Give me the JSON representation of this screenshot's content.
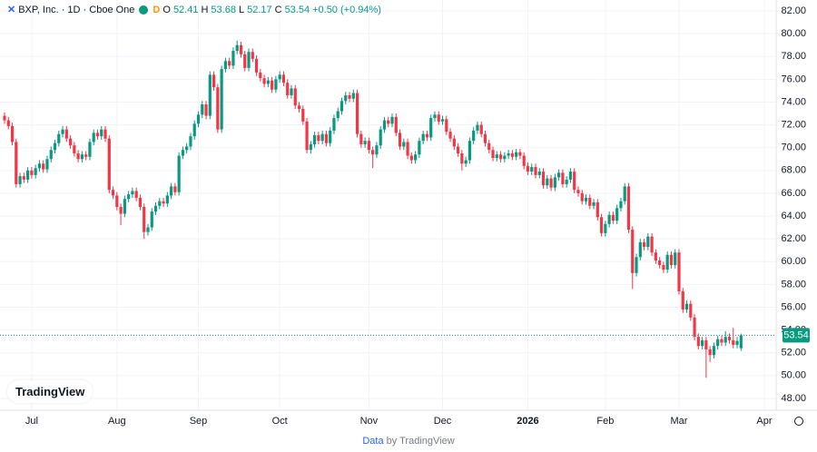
{
  "chart_data": {
    "type": "candlestick",
    "symbol": "BXP, Inc. · 1D · Cboe One",
    "badge": "D",
    "ohlc_labels": [
      "O",
      "H",
      "L",
      "C"
    ],
    "change": "+0.50 (+0.94%)",
    "up_color": "#089981",
    "down_color": "#f23645",
    "grid": true,
    "ohlc": [
      [
        72.8,
        73.1,
        72.1,
        72.4
      ],
      [
        72.4,
        72.7,
        71.6,
        71.9
      ],
      [
        71.9,
        72.2,
        70.2,
        70.5
      ],
      [
        70.5,
        70.8,
        66.5,
        66.8
      ],
      [
        66.8,
        67.8,
        66.5,
        67.5
      ],
      [
        67.5,
        67.8,
        66.9,
        67.2
      ],
      [
        67.2,
        68.3,
        66.9,
        68.0
      ],
      [
        68.0,
        68.3,
        67.3,
        67.6
      ],
      [
        67.6,
        68.5,
        67.3,
        68.2
      ],
      [
        68.2,
        68.9,
        67.9,
        68.6
      ],
      [
        68.6,
        68.9,
        67.8,
        68.1
      ],
      [
        68.1,
        69.3,
        67.8,
        69.0
      ],
      [
        69.0,
        70.1,
        68.7,
        69.8
      ],
      [
        69.8,
        70.7,
        69.5,
        70.4
      ],
      [
        70.4,
        71.5,
        70.1,
        71.2
      ],
      [
        71.2,
        71.9,
        70.9,
        71.6
      ],
      [
        71.6,
        71.9,
        70.5,
        70.8
      ],
      [
        70.8,
        71.1,
        69.9,
        70.2
      ],
      [
        70.2,
        70.5,
        69.2,
        69.5
      ],
      [
        69.5,
        69.8,
        68.7,
        69.0
      ],
      [
        69.0,
        69.7,
        68.7,
        69.4
      ],
      [
        69.4,
        69.7,
        68.9,
        69.2
      ],
      [
        69.2,
        70.8,
        68.9,
        70.5
      ],
      [
        70.5,
        71.6,
        70.2,
        71.3
      ],
      [
        71.3,
        71.6,
        70.7,
        71.0
      ],
      [
        71.0,
        71.9,
        70.7,
        71.6
      ],
      [
        71.6,
        71.9,
        70.5,
        70.8
      ],
      [
        70.8,
        71.1,
        66.0,
        66.3
      ],
      [
        66.3,
        66.6,
        65.5,
        65.8
      ],
      [
        65.8,
        66.1,
        64.5,
        64.8
      ],
      [
        64.8,
        65.1,
        63.2,
        64.2
      ],
      [
        64.2,
        65.8,
        63.9,
        65.5
      ],
      [
        65.5,
        66.2,
        65.2,
        65.9
      ],
      [
        65.9,
        66.5,
        65.6,
        66.2
      ],
      [
        66.2,
        66.5,
        65.3,
        65.6
      ],
      [
        65.6,
        65.9,
        64.5,
        64.8
      ],
      [
        64.8,
        65.1,
        62.0,
        62.6
      ],
      [
        62.6,
        63.3,
        62.3,
        63.0
      ],
      [
        63.0,
        64.7,
        62.7,
        64.4
      ],
      [
        64.4,
        65.2,
        64.1,
        64.9
      ],
      [
        64.9,
        65.6,
        64.6,
        65.3
      ],
      [
        65.3,
        65.6,
        64.8,
        65.1
      ],
      [
        65.1,
        66.1,
        64.8,
        65.8
      ],
      [
        65.8,
        66.9,
        65.5,
        66.6
      ],
      [
        66.6,
        66.9,
        65.8,
        66.1
      ],
      [
        66.1,
        69.6,
        65.8,
        69.3
      ],
      [
        69.3,
        70.1,
        69.0,
        69.8
      ],
      [
        69.8,
        70.4,
        69.5,
        70.1
      ],
      [
        70.1,
        71.3,
        69.8,
        71.0
      ],
      [
        71.0,
        72.4,
        70.7,
        72.1
      ],
      [
        72.1,
        73.2,
        71.8,
        72.9
      ],
      [
        72.9,
        74.1,
        72.6,
        73.8
      ],
      [
        73.8,
        74.1,
        72.5,
        72.8
      ],
      [
        72.8,
        76.7,
        72.5,
        76.4
      ],
      [
        76.4,
        76.7,
        75.0,
        75.3
      ],
      [
        75.3,
        75.6,
        71.3,
        71.6
      ],
      [
        71.6,
        77.2,
        71.3,
        76.9
      ],
      [
        76.9,
        77.9,
        76.6,
        77.6
      ],
      [
        77.6,
        77.9,
        76.9,
        77.2
      ],
      [
        77.2,
        78.8,
        76.9,
        78.5
      ],
      [
        78.5,
        79.4,
        78.2,
        79.0
      ],
      [
        79.0,
        79.3,
        77.9,
        78.2
      ],
      [
        78.2,
        78.5,
        76.7,
        77.0
      ],
      [
        77.0,
        78.7,
        76.7,
        78.4
      ],
      [
        78.4,
        78.7,
        77.5,
        77.8
      ],
      [
        77.8,
        78.1,
        76.3,
        76.6
      ],
      [
        76.6,
        76.9,
        75.8,
        76.1
      ],
      [
        76.1,
        76.4,
        75.3,
        75.6
      ],
      [
        75.6,
        76.2,
        75.3,
        75.9
      ],
      [
        75.9,
        76.2,
        74.8,
        75.1
      ],
      [
        75.1,
        76.3,
        74.8,
        76.0
      ],
      [
        76.0,
        76.7,
        75.7,
        76.4
      ],
      [
        76.4,
        76.7,
        75.4,
        75.7
      ],
      [
        75.7,
        76.0,
        74.3,
        74.6
      ],
      [
        74.6,
        75.5,
        74.3,
        75.2
      ],
      [
        75.2,
        75.5,
        73.4,
        73.7
      ],
      [
        73.7,
        74.0,
        73.1,
        73.4
      ],
      [
        73.4,
        73.7,
        72.0,
        72.3
      ],
      [
        72.3,
        72.6,
        69.5,
        69.8
      ],
      [
        69.8,
        70.6,
        69.5,
        70.3
      ],
      [
        70.3,
        71.4,
        70.0,
        71.1
      ],
      [
        71.1,
        71.4,
        70.3,
        70.6
      ],
      [
        70.6,
        71.5,
        70.3,
        71.2
      ],
      [
        71.2,
        71.5,
        70.1,
        70.4
      ],
      [
        70.4,
        71.8,
        70.1,
        71.5
      ],
      [
        71.5,
        72.9,
        71.2,
        72.6
      ],
      [
        72.6,
        73.5,
        72.3,
        73.2
      ],
      [
        73.2,
        74.4,
        72.9,
        74.1
      ],
      [
        74.1,
        74.9,
        73.8,
        74.6
      ],
      [
        74.6,
        74.9,
        74.0,
        74.3
      ],
      [
        74.3,
        75.1,
        74.0,
        74.8
      ],
      [
        74.8,
        75.1,
        70.9,
        71.2
      ],
      [
        71.2,
        71.5,
        70.0,
        70.3
      ],
      [
        70.3,
        70.9,
        70.0,
        70.6
      ],
      [
        70.6,
        70.9,
        69.5,
        69.8
      ],
      [
        69.8,
        70.1,
        68.2,
        69.4
      ],
      [
        69.4,
        70.5,
        69.1,
        70.2
      ],
      [
        70.2,
        71.9,
        69.9,
        71.6
      ],
      [
        71.6,
        72.7,
        71.3,
        72.4
      ],
      [
        72.4,
        72.7,
        71.8,
        72.1
      ],
      [
        72.1,
        73.0,
        71.8,
        72.7
      ],
      [
        72.7,
        73.0,
        71.0,
        71.3
      ],
      [
        71.3,
        71.6,
        69.8,
        70.1
      ],
      [
        70.1,
        70.8,
        69.8,
        70.5
      ],
      [
        70.5,
        70.8,
        69.0,
        69.3
      ],
      [
        69.3,
        69.6,
        68.6,
        68.9
      ],
      [
        68.9,
        69.7,
        68.6,
        69.4
      ],
      [
        69.4,
        70.9,
        69.1,
        70.6
      ],
      [
        70.6,
        71.5,
        70.3,
        71.2
      ],
      [
        71.2,
        71.5,
        70.6,
        70.9
      ],
      [
        70.9,
        72.9,
        70.6,
        72.6
      ],
      [
        72.6,
        73.2,
        72.3,
        72.9
      ],
      [
        72.9,
        73.2,
        72.0,
        72.3
      ],
      [
        72.3,
        72.8,
        72.0,
        72.5
      ],
      [
        72.5,
        72.8,
        71.1,
        71.4
      ],
      [
        71.4,
        71.7,
        70.5,
        70.8
      ],
      [
        70.8,
        71.1,
        69.8,
        70.1
      ],
      [
        70.1,
        70.4,
        69.2,
        69.5
      ],
      [
        69.5,
        69.8,
        68.0,
        68.6
      ],
      [
        68.6,
        69.2,
        68.3,
        68.9
      ],
      [
        68.9,
        70.9,
        68.6,
        70.6
      ],
      [
        70.6,
        71.8,
        70.3,
        71.5
      ],
      [
        71.5,
        72.3,
        71.2,
        72.0
      ],
      [
        72.0,
        72.3,
        70.9,
        71.2
      ],
      [
        71.2,
        71.5,
        70.1,
        70.4
      ],
      [
        70.4,
        70.7,
        69.5,
        69.8
      ],
      [
        69.8,
        70.1,
        68.8,
        69.1
      ],
      [
        69.1,
        69.7,
        68.8,
        69.4
      ],
      [
        69.4,
        69.7,
        68.7,
        69.0
      ],
      [
        69.0,
        69.6,
        68.7,
        69.3
      ],
      [
        69.3,
        69.8,
        69.0,
        69.5
      ],
      [
        69.5,
        69.8,
        68.9,
        69.2
      ],
      [
        69.2,
        69.9,
        68.9,
        69.6
      ],
      [
        69.6,
        69.9,
        69.0,
        69.3
      ],
      [
        69.3,
        69.6,
        68.1,
        68.4
      ],
      [
        68.4,
        68.7,
        67.6,
        67.9
      ],
      [
        67.9,
        68.6,
        67.6,
        68.3
      ],
      [
        68.3,
        68.6,
        67.3,
        67.6
      ],
      [
        67.6,
        68.2,
        67.3,
        67.9
      ],
      [
        67.9,
        68.2,
        66.4,
        66.7
      ],
      [
        66.7,
        67.6,
        66.4,
        67.3
      ],
      [
        67.3,
        67.6,
        66.2,
        66.5
      ],
      [
        66.5,
        67.7,
        66.2,
        67.4
      ],
      [
        67.4,
        68.1,
        67.1,
        67.8
      ],
      [
        67.8,
        68.1,
        66.5,
        66.8
      ],
      [
        66.8,
        67.5,
        66.5,
        67.2
      ],
      [
        67.2,
        68.2,
        66.9,
        67.9
      ],
      [
        67.9,
        68.2,
        66.0,
        66.3
      ],
      [
        66.3,
        66.6,
        65.7,
        66.0
      ],
      [
        66.0,
        66.3,
        65.0,
        65.3
      ],
      [
        65.3,
        65.9,
        65.0,
        65.6
      ],
      [
        65.6,
        65.9,
        64.6,
        64.9
      ],
      [
        64.9,
        65.5,
        64.6,
        65.2
      ],
      [
        65.2,
        65.5,
        63.6,
        63.9
      ],
      [
        63.9,
        64.2,
        62.2,
        62.5
      ],
      [
        62.5,
        63.6,
        62.2,
        63.3
      ],
      [
        63.3,
        64.4,
        63.0,
        64.1
      ],
      [
        64.1,
        64.4,
        63.3,
        63.6
      ],
      [
        63.6,
        65.0,
        63.3,
        64.7
      ],
      [
        64.7,
        65.6,
        64.4,
        65.3
      ],
      [
        65.3,
        66.9,
        65.0,
        66.6
      ],
      [
        66.6,
        66.9,
        62.5,
        62.8
      ],
      [
        62.8,
        63.1,
        57.6,
        59.0
      ],
      [
        59.0,
        60.7,
        58.7,
        60.4
      ],
      [
        60.4,
        62.0,
        60.1,
        61.7
      ],
      [
        61.7,
        62.0,
        61.0,
        61.3
      ],
      [
        61.3,
        62.5,
        61.0,
        62.2
      ],
      [
        62.2,
        62.5,
        60.5,
        60.8
      ],
      [
        60.8,
        61.1,
        59.8,
        60.1
      ],
      [
        60.1,
        60.4,
        59.4,
        59.7
      ],
      [
        59.7,
        60.0,
        59.0,
        59.3
      ],
      [
        59.3,
        60.9,
        59.0,
        60.6
      ],
      [
        60.6,
        60.9,
        59.4,
        59.7
      ],
      [
        59.7,
        61.1,
        59.4,
        60.8
      ],
      [
        60.8,
        61.1,
        57.1,
        57.4
      ],
      [
        57.4,
        57.7,
        55.5,
        55.8
      ],
      [
        55.8,
        56.6,
        55.5,
        56.3
      ],
      [
        56.3,
        56.6,
        54.8,
        55.1
      ],
      [
        55.1,
        55.4,
        53.1,
        53.4
      ],
      [
        53.4,
        53.7,
        52.3,
        52.6
      ],
      [
        52.6,
        53.4,
        52.3,
        53.1
      ],
      [
        53.1,
        53.4,
        49.8,
        52.3
      ],
      [
        52.3,
        52.6,
        51.2,
        51.8
      ],
      [
        51.8,
        52.9,
        51.5,
        52.6
      ],
      [
        52.6,
        53.5,
        52.3,
        53.2
      ],
      [
        53.2,
        53.5,
        52.6,
        52.9
      ],
      [
        52.9,
        53.9,
        52.6,
        53.4
      ],
      [
        53.4,
        53.7,
        52.8,
        53.1
      ],
      [
        53.1,
        54.2,
        52.4,
        52.7
      ],
      [
        52.7,
        53.4,
        52.4,
        53.04
      ],
      [
        52.41,
        53.68,
        52.17,
        53.54
      ]
    ],
    "xlim": [
      -1.17,
      199.06
    ],
    "xticks": [
      {
        "value": 7,
        "label": "Jul"
      },
      {
        "value": 29,
        "label": "Aug"
      },
      {
        "value": 50,
        "label": "Sep"
      },
      {
        "value": 71,
        "label": "Oct"
      },
      {
        "value": 94,
        "label": "Nov"
      },
      {
        "value": 113,
        "label": "Dec"
      },
      {
        "value": 135,
        "label": "2026"
      },
      {
        "value": 155,
        "label": "Feb"
      },
      {
        "value": 174,
        "label": "Mar"
      },
      {
        "value": 196,
        "label": "Apr"
      }
    ],
    "ylim": [
      46.96,
      82.96
    ],
    "yticks": [
      {
        "value": 48,
        "label": "48.00"
      },
      {
        "value": 50,
        "label": "50.00"
      },
      {
        "value": 52,
        "label": "52.00"
      },
      {
        "value": 54,
        "label": "54.00"
      },
      {
        "value": 56,
        "label": "56.00"
      },
      {
        "value": 58,
        "label": "58.00"
      },
      {
        "value": 60,
        "label": "60.00"
      },
      {
        "value": 62,
        "label": "62.00"
      },
      {
        "value": 64,
        "label": "64.00"
      },
      {
        "value": 66,
        "label": "66.00"
      },
      {
        "value": 68,
        "label": "68.00"
      },
      {
        "value": 70,
        "label": "70.00"
      },
      {
        "value": 72,
        "label": "72.00"
      },
      {
        "value": 74,
        "label": "74.00"
      },
      {
        "value": 76,
        "label": "76.00"
      },
      {
        "value": 78,
        "label": "78.00"
      },
      {
        "value": 80,
        "label": "80.00"
      },
      {
        "value": 82,
        "label": "82.00"
      }
    ]
  },
  "logo": "TradingView",
  "footer": {
    "link": "Data",
    "text": "by TradingView"
  }
}
